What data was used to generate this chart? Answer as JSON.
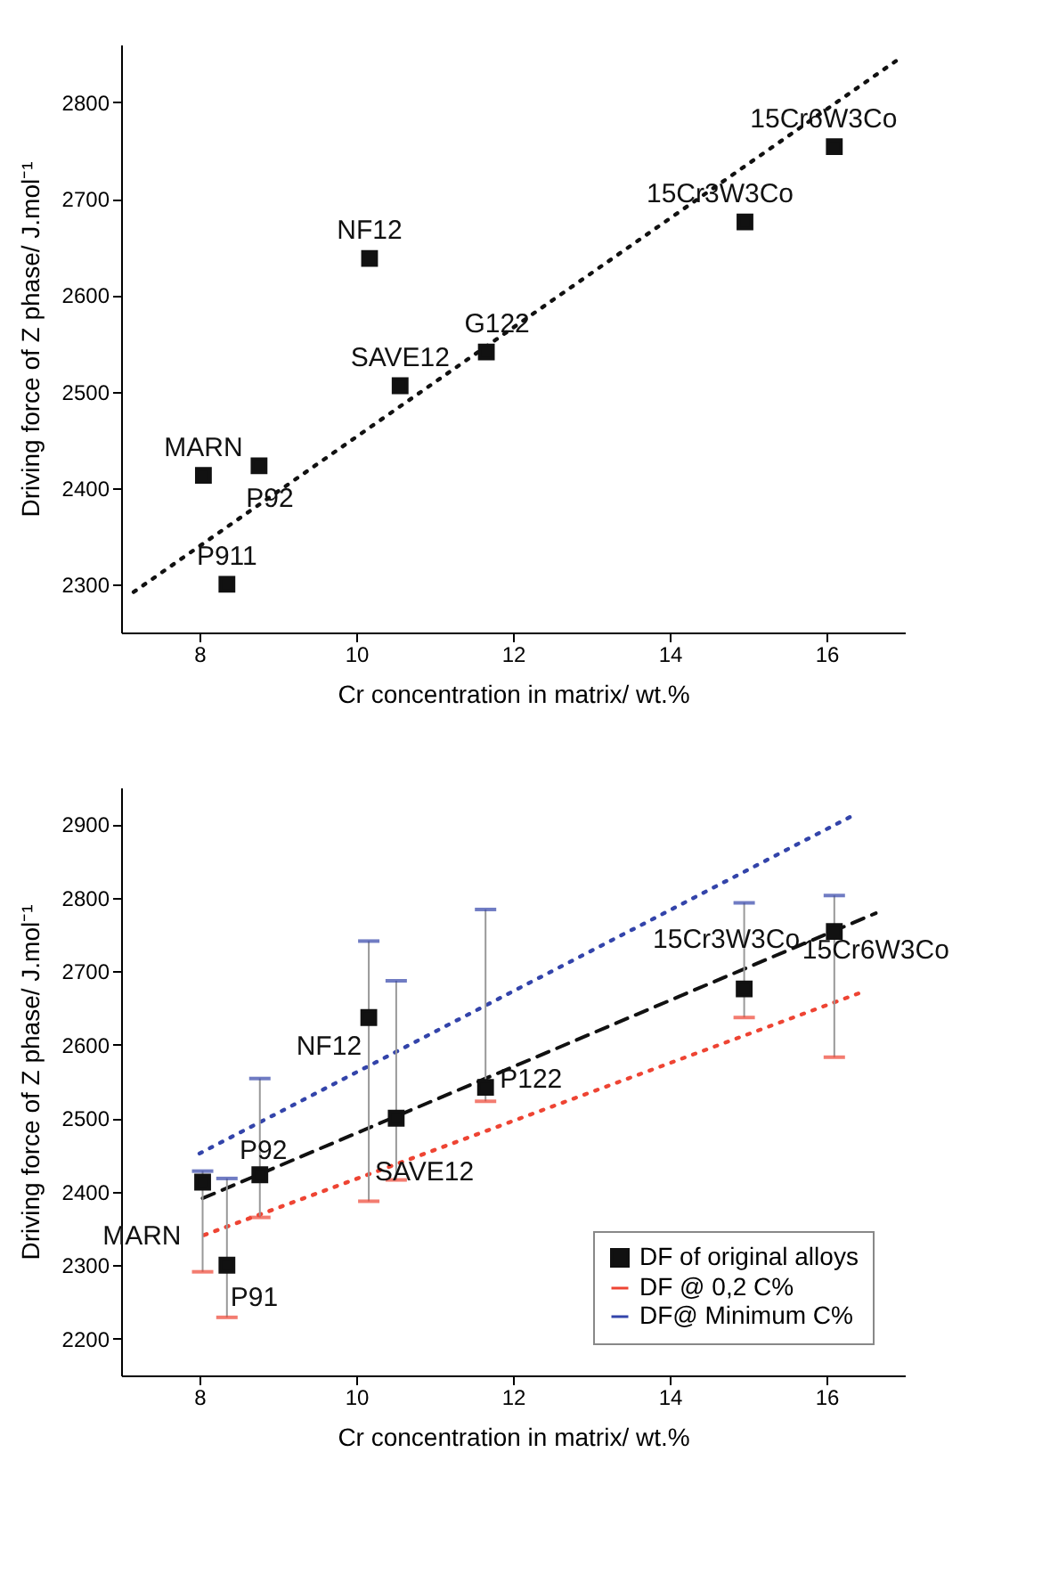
{
  "chart_data": [
    {
      "type": "scatter",
      "xlabel": "Cr concentration in matrix/ wt.%",
      "ylabel": "Driving force of Z phase/ J.mol⁻¹",
      "xlim": [
        7,
        17
      ],
      "ylim": [
        2250,
        2860
      ],
      "xticks": [
        8,
        10,
        12,
        14,
        16
      ],
      "yticks": [
        2300,
        2400,
        2500,
        2600,
        2700,
        2800
      ],
      "grid": false,
      "series": [
        {
          "color": "#111111",
          "marker": "square",
          "x": [
            8.05,
            8.76,
            8.35,
            10.17,
            10.56,
            11.66,
            14.96,
            16.1
          ],
          "values": [
            2413,
            2423,
            2300,
            2638,
            2506,
            2541,
            2676,
            2754
          ]
        },
        {
          "type": "line",
          "color": "#111111",
          "line_style": "dotted",
          "x": [
            7.16,
            16.94
          ],
          "values": [
            2292,
            2846
          ]
        }
      ],
      "annotations": [
        {
          "text": "MARN",
          "x": 8.05,
          "y": 2413
        },
        {
          "text": "P92",
          "x": 8.76,
          "y": 2423
        },
        {
          "text": "P911",
          "x": 8.35,
          "y": 2300
        },
        {
          "text": "NF12",
          "x": 10.17,
          "y": 2638
        },
        {
          "text": "SAVE12",
          "x": 10.56,
          "y": 2506
        },
        {
          "text": "G122",
          "x": 11.66,
          "y": 2541
        },
        {
          "text": "15Cr3W3Co",
          "x": 14.96,
          "y": 2676
        },
        {
          "text": "15Cr6W3Co",
          "x": 16.1,
          "y": 2754
        }
      ]
    },
    {
      "type": "scatter",
      "xlabel": "Cr concentration in matrix/ wt.%",
      "ylabel": "Driving force of Z phase/ J.mol⁻¹",
      "xlim": [
        7,
        17
      ],
      "ylim": [
        2150,
        2950
      ],
      "xticks": [
        8,
        10,
        12,
        14,
        16
      ],
      "yticks": [
        2200,
        2300,
        2400,
        2500,
        2600,
        2700,
        2800,
        2900
      ],
      "grid": false,
      "legend": "bottom right",
      "series": [
        {
          "name": "DF of original alloys",
          "color": "#111111",
          "marker": "square",
          "x": [
            8.04,
            8.35,
            8.77,
            10.16,
            10.51,
            11.65,
            14.95,
            16.1
          ],
          "values": [
            2413,
            2300,
            2423,
            2637,
            2500,
            2542,
            2676,
            2754
          ],
          "errors": [
            [
              2291,
              2428
            ],
            [
              2229,
              2418
            ],
            [
              2365,
              2554
            ],
            [
              2387,
              2741
            ],
            [
              2416,
              2687
            ],
            [
              2523,
              2784
            ],
            [
              2637,
              2793
            ],
            [
              2583,
              2803
            ]
          ]
        },
        {
          "type": "line",
          "color": "#111111",
          "line_style": "dashed",
          "x": [
            8.04,
            16.63
          ],
          "values": [
            2391,
            2779
          ]
        },
        {
          "type": "line",
          "name": "DF @ 0,2 C%",
          "color": "#ee4433",
          "line_style": "dotted",
          "x": [
            8.06,
            16.49
          ],
          "values": [
            2341,
            2673
          ]
        },
        {
          "type": "line",
          "name": "DF@ Minimum C%",
          "color": "#3344aa",
          "line_style": "dotted",
          "x": [
            8.0,
            16.34
          ],
          "values": [
            2452,
            2912
          ]
        }
      ],
      "annotations": [
        {
          "text": "MARN",
          "x": 8.04,
          "y": 2413
        },
        {
          "text": "P91",
          "x": 8.35,
          "y": 2300
        },
        {
          "text": "P92",
          "x": 8.77,
          "y": 2423
        },
        {
          "text": "NF12",
          "x": 10.16,
          "y": 2637
        },
        {
          "text": "SAVE12",
          "x": 10.51,
          "y": 2500
        },
        {
          "text": "P122",
          "x": 11.65,
          "y": 2542
        },
        {
          "text": "15Cr3W3Co",
          "x": 14.95,
          "y": 2676
        },
        {
          "text": "15Cr6W3Co",
          "x": 16.1,
          "y": 2754
        }
      ]
    }
  ]
}
